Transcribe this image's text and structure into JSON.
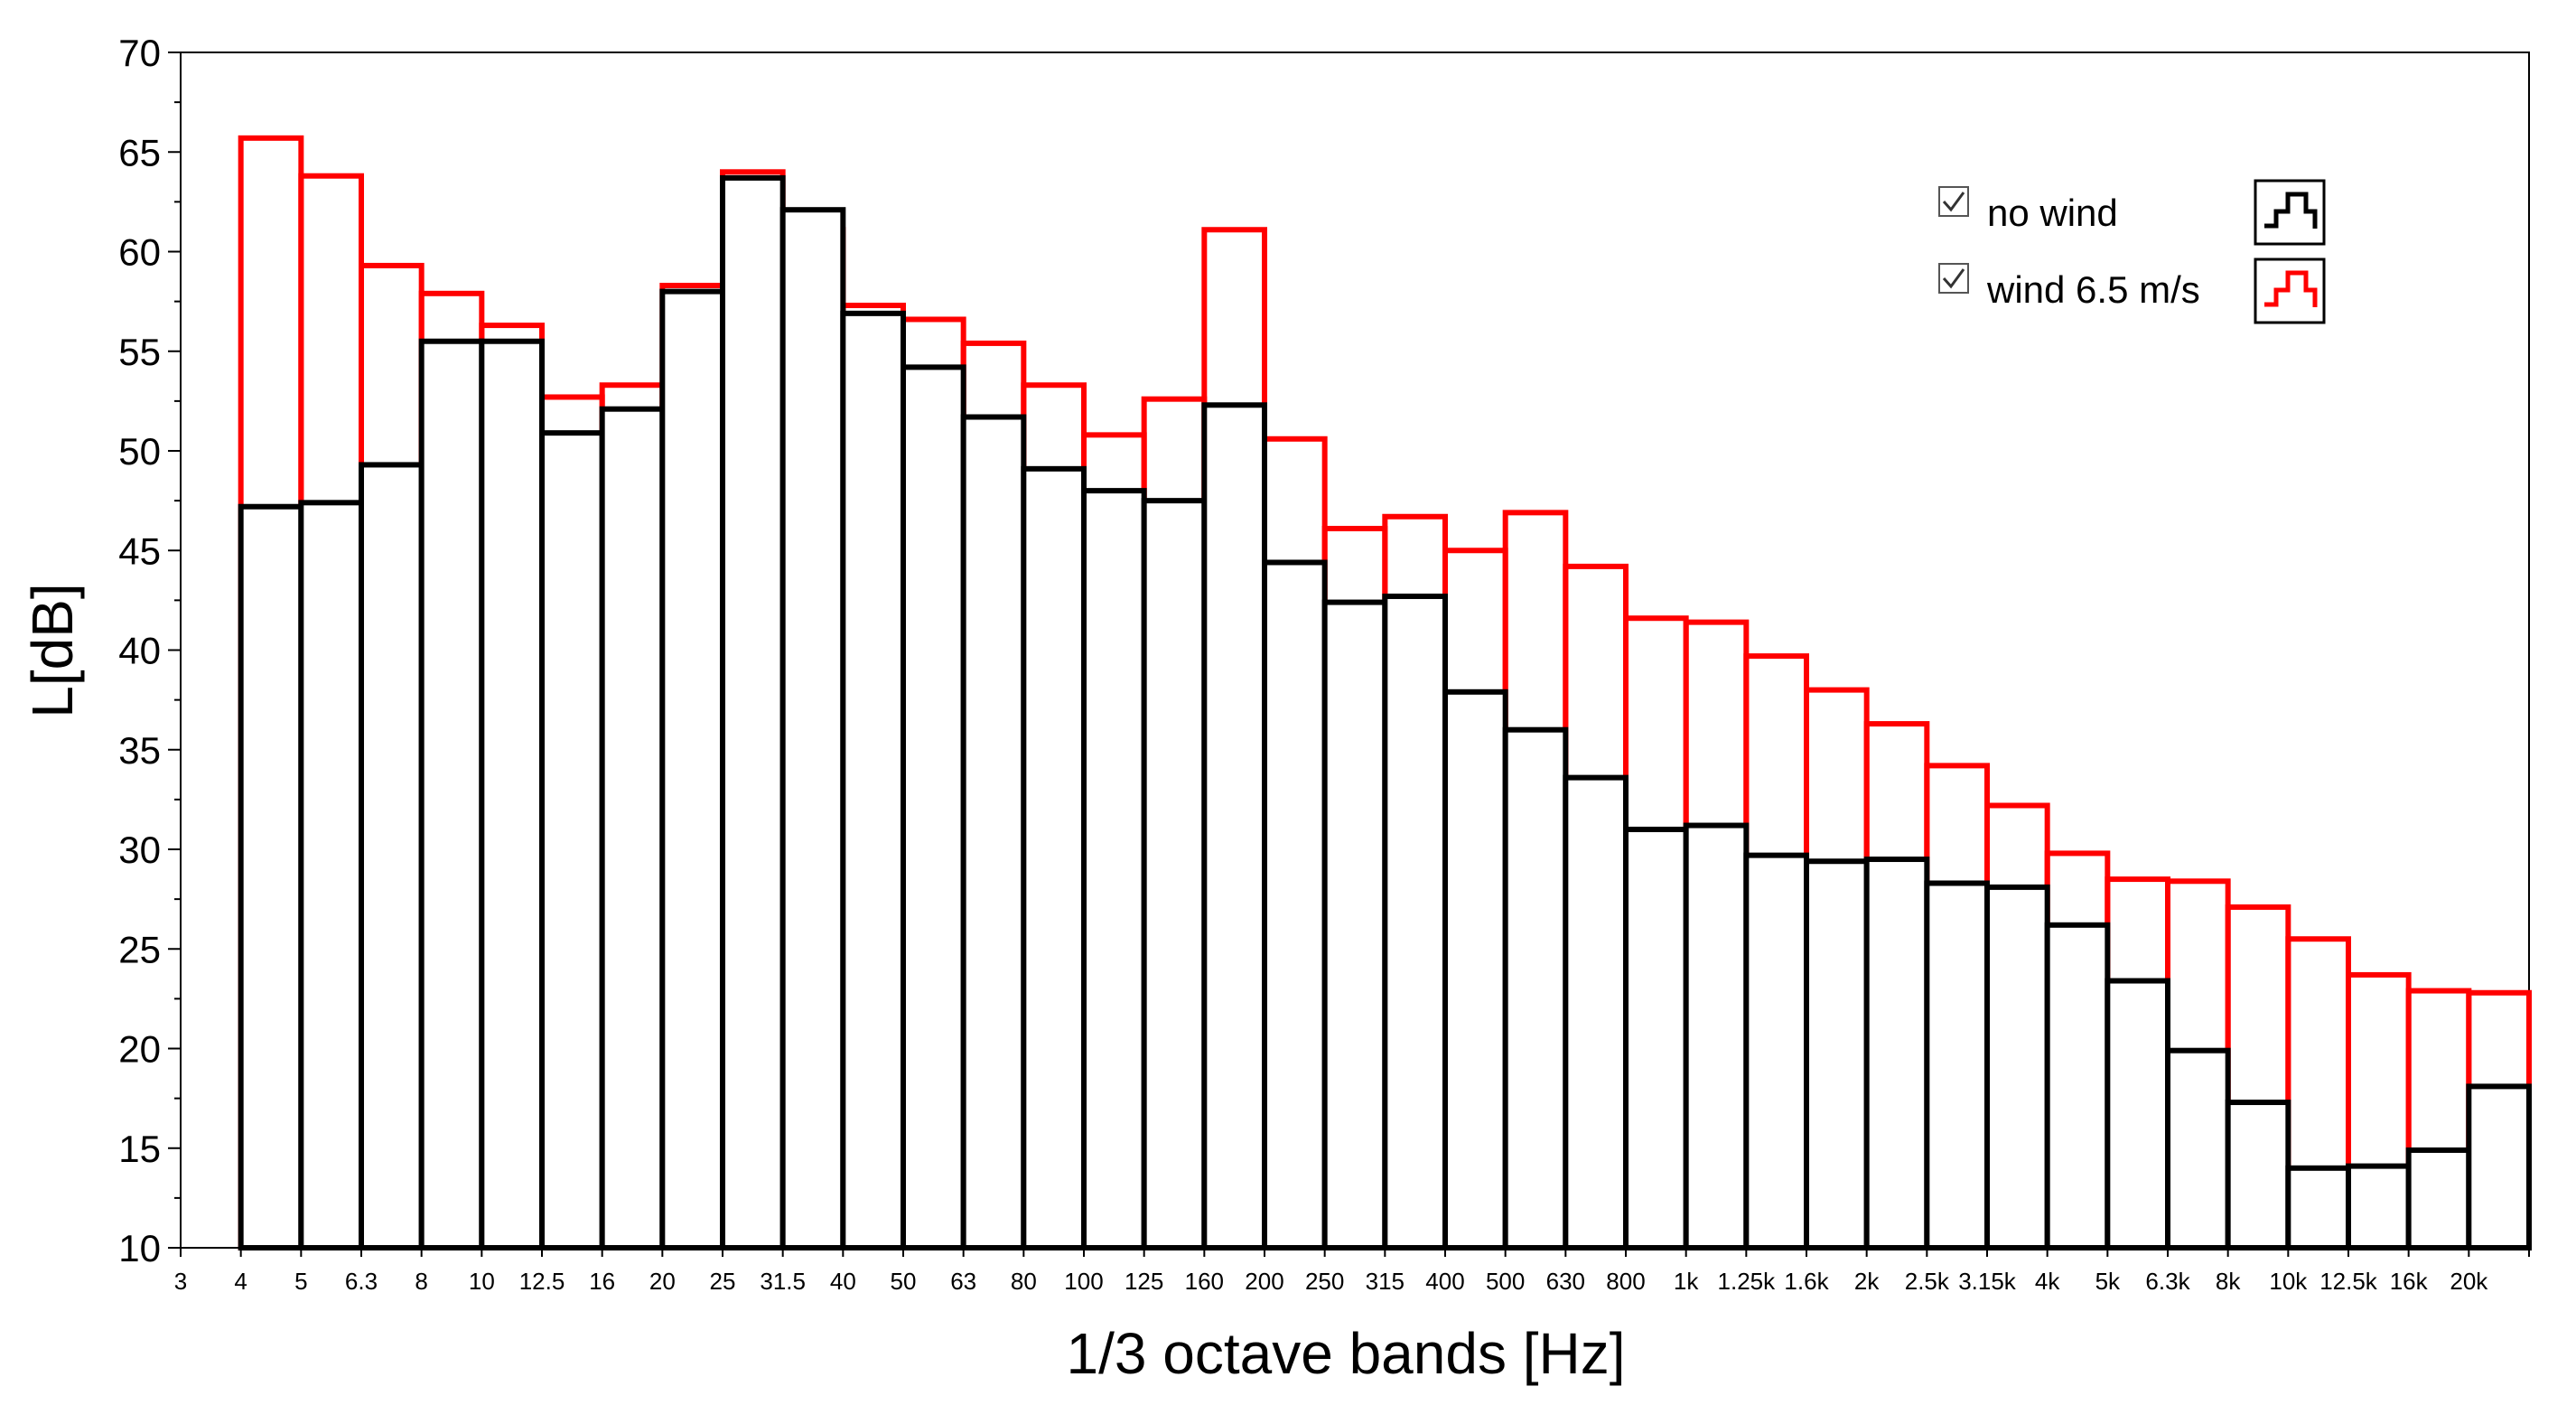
{
  "chart_data": {
    "type": "bar",
    "xlabel": "1/3 octave bands [Hz]",
    "ylabel": "L[dB]",
    "ylim": [
      10,
      70
    ],
    "yticks": [
      10,
      15,
      20,
      25,
      30,
      35,
      40,
      45,
      50,
      55,
      60,
      65,
      70
    ],
    "grid": false,
    "legend_position": "top-right",
    "x_tick_labels": [
      "3",
      "4",
      "5",
      "6.3",
      "8",
      "10",
      "12.5",
      "16",
      "20",
      "25",
      "31.5",
      "40",
      "50",
      "63",
      "80",
      "100",
      "125",
      "160",
      "200",
      "250",
      "315",
      "400",
      "500",
      "630",
      "800",
      "1k",
      "1.25k",
      "1.6k",
      "2k",
      "2.5k",
      "3.15k",
      "4k",
      "5k",
      "6.3k",
      "8k",
      "10k",
      "12.5k",
      "16k",
      "20k"
    ],
    "categories": [
      "4",
      "5",
      "6.3",
      "8",
      "10",
      "12.5",
      "16",
      "20",
      "25",
      "31.5",
      "40",
      "50",
      "63",
      "80",
      "100",
      "125",
      "160",
      "200",
      "250",
      "315",
      "400",
      "500",
      "630",
      "800",
      "1k",
      "1.25k",
      "1.6k",
      "2k",
      "2.5k",
      "3.15k",
      "4k",
      "5k",
      "6.3k",
      "8k",
      "10k",
      "12.5k",
      "16k",
      "20k"
    ],
    "series": [
      {
        "name": "wind 6.5 m/s",
        "color": "#ff0000",
        "checked": true,
        "values": [
          65.7,
          63.8,
          59.3,
          57.9,
          56.3,
          52.7,
          53.3,
          58.3,
          64.0,
          61.1,
          57.3,
          56.6,
          55.4,
          53.3,
          50.8,
          52.6,
          61.1,
          50.6,
          46.1,
          46.7,
          45.0,
          46.9,
          44.2,
          41.6,
          41.4,
          39.7,
          38.0,
          36.3,
          34.2,
          32.2,
          29.8,
          28.5,
          28.4,
          27.1,
          25.5,
          23.7,
          22.9,
          22.8
        ]
      },
      {
        "name": "no wind",
        "color": "#000000",
        "checked": true,
        "values": [
          47.2,
          47.4,
          49.3,
          55.5,
          55.5,
          50.9,
          52.1,
          58.0,
          63.7,
          62.1,
          56.9,
          54.2,
          51.7,
          49.1,
          48.0,
          47.5,
          52.3,
          44.4,
          42.4,
          42.7,
          37.9,
          36.0,
          33.6,
          31.0,
          31.2,
          29.7,
          29.4,
          29.5,
          28.3,
          28.1,
          26.2,
          23.4,
          19.9,
          17.3,
          14.0,
          14.1,
          14.9,
          18.1
        ]
      }
    ]
  }
}
